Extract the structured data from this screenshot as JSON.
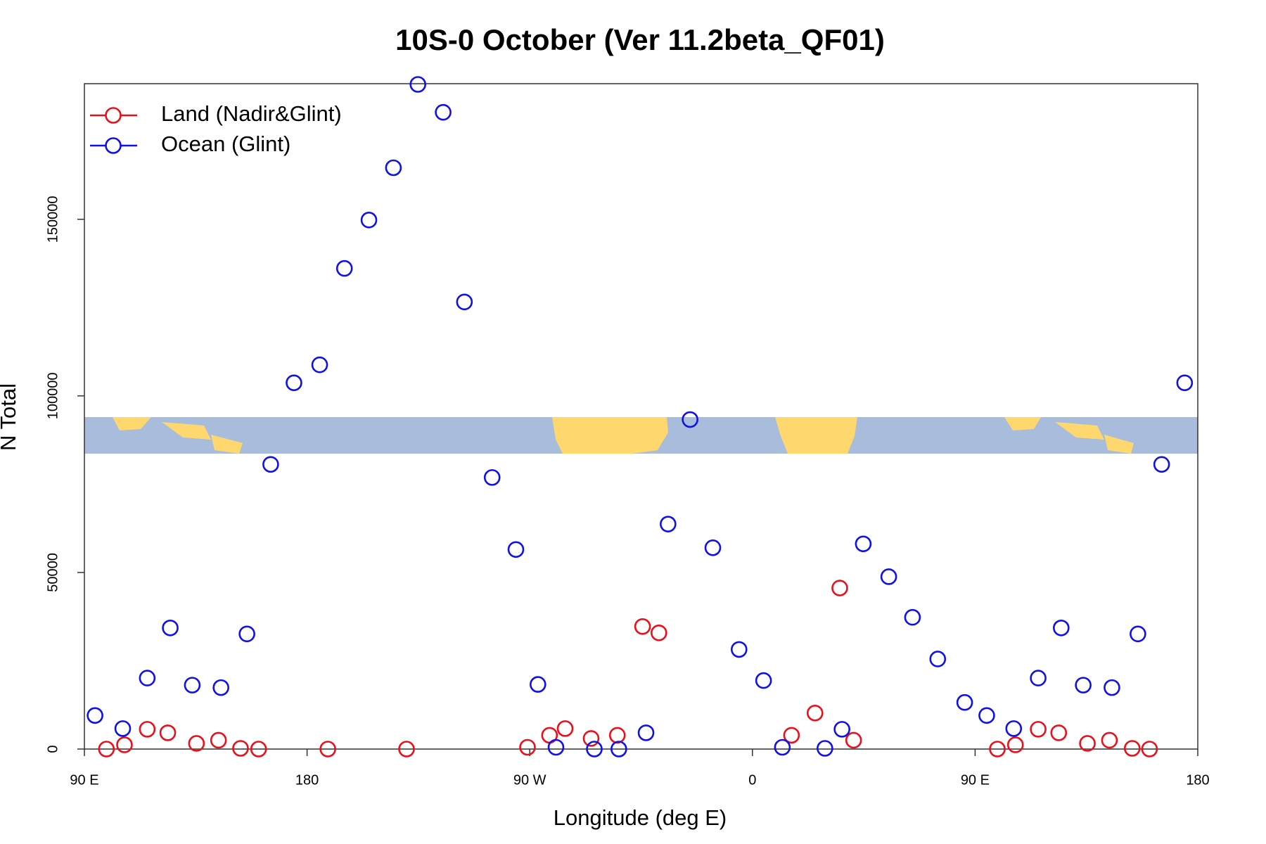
{
  "chart_data": {
    "type": "scatter",
    "title": "10S-0 October (Ver 11.2beta_QF01)",
    "xlabel": "Longitude (deg E)",
    "ylabel": "N Total",
    "xlim": [
      90,
      540
    ],
    "ylim": [
      0,
      188400
    ],
    "xticks": [
      {
        "value": 90,
        "label": "90 E"
      },
      180,
      {
        "value": 270,
        "label": "90 W"
      },
      {
        "value": 360,
        "label": "0"
      },
      {
        "value": 450,
        "label": "90 E"
      },
      {
        "value": 540,
        "label": "180"
      }
    ],
    "yticks": [
      0,
      50000,
      100000,
      150000
    ],
    "legend": "top-left",
    "series": [
      {
        "name": "Land (Nadir&Glint)",
        "color": "#e8101a",
        "x": [
          98.9,
          106.2,
          115.4,
          123.7,
          135.3,
          144.2,
          153.1,
          160.4,
          188.4,
          220.2,
          269.1,
          278,
          284.3,
          294.8,
          305.4,
          315.6,
          322.2,
          375.8,
          385.3,
          395.3,
          400.9,
          459,
          466.3,
          475.5,
          483.8,
          495.4,
          504.3,
          513.5,
          520.5
        ],
        "values": [
          0,
          1200,
          5600,
          4600,
          1600,
          2500,
          200,
          0,
          0,
          0,
          500,
          3900,
          5800,
          3000,
          3900,
          34700,
          32900,
          3900,
          10200,
          45600,
          2500,
          0,
          1200,
          5600,
          4600,
          1600,
          2500,
          200,
          0
        ]
      },
      {
        "name": "Ocean (Glint)",
        "color": "#1010e8",
        "x": [
          94.3,
          105.5,
          115.4,
          124.7,
          133.6,
          145.2,
          155.7,
          165.3,
          174.7,
          185.1,
          195.1,
          205,
          214.9,
          224.8,
          235,
          243.6,
          254.8,
          264.4,
          273.3,
          280.6,
          296.1,
          306,
          317,
          325.9,
          334.8,
          344,
          354.6,
          364.5,
          372.1,
          389.3,
          396.2,
          404.8,
          415.1,
          424.7,
          434.9,
          445.8,
          454.7,
          465.6,
          475.5,
          484.8,
          493.7,
          505.3,
          515.8,
          525.4,
          534.7
        ],
        "values": [
          9500,
          5800,
          20100,
          34300,
          18100,
          17400,
          32600,
          80600,
          103700,
          108800,
          136100,
          149800,
          164600,
          188200,
          180300,
          126600,
          76900,
          56500,
          18300,
          500,
          0,
          0,
          4600,
          63700,
          93300,
          57000,
          28200,
          19400,
          500,
          200,
          5600,
          58100,
          48800,
          37300,
          25500,
          13200,
          9500,
          5800,
          20100,
          34300,
          18100,
          17400,
          32600,
          80600,
          103700
        ]
      }
    ]
  }
}
